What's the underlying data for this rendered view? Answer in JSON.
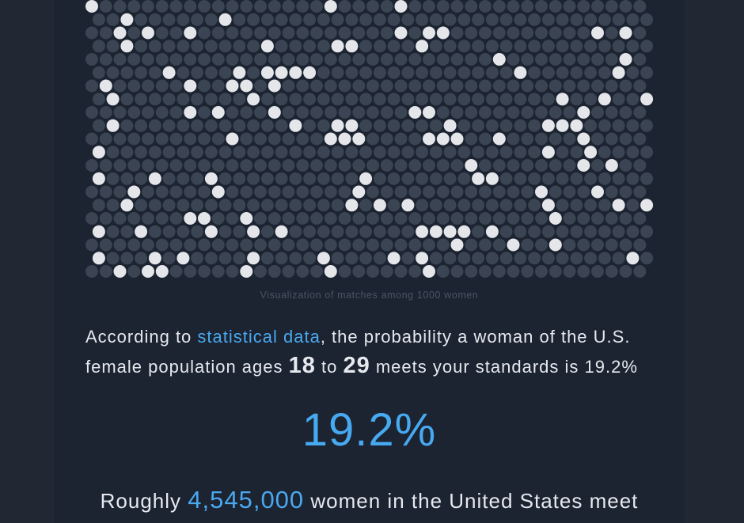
{
  "visualization": {
    "caption": "Visualization of matches among 1000 women",
    "colors": {
      "dot": "#3a4452",
      "match": "#e4e6ea"
    }
  },
  "paragraph": {
    "prefix": "According to ",
    "link_text": "statistical data",
    "mid": ", the probability a woman of the U.S. female population ages ",
    "age_min": "18",
    "to": " to ",
    "age_max": "29",
    "suffix": " meets your standards is 19.2%"
  },
  "result": {
    "percent": "19.2%"
  },
  "summary": {
    "prefix": "Roughly ",
    "count": "4,545,000",
    "suffix": " women in the United States meet"
  }
}
